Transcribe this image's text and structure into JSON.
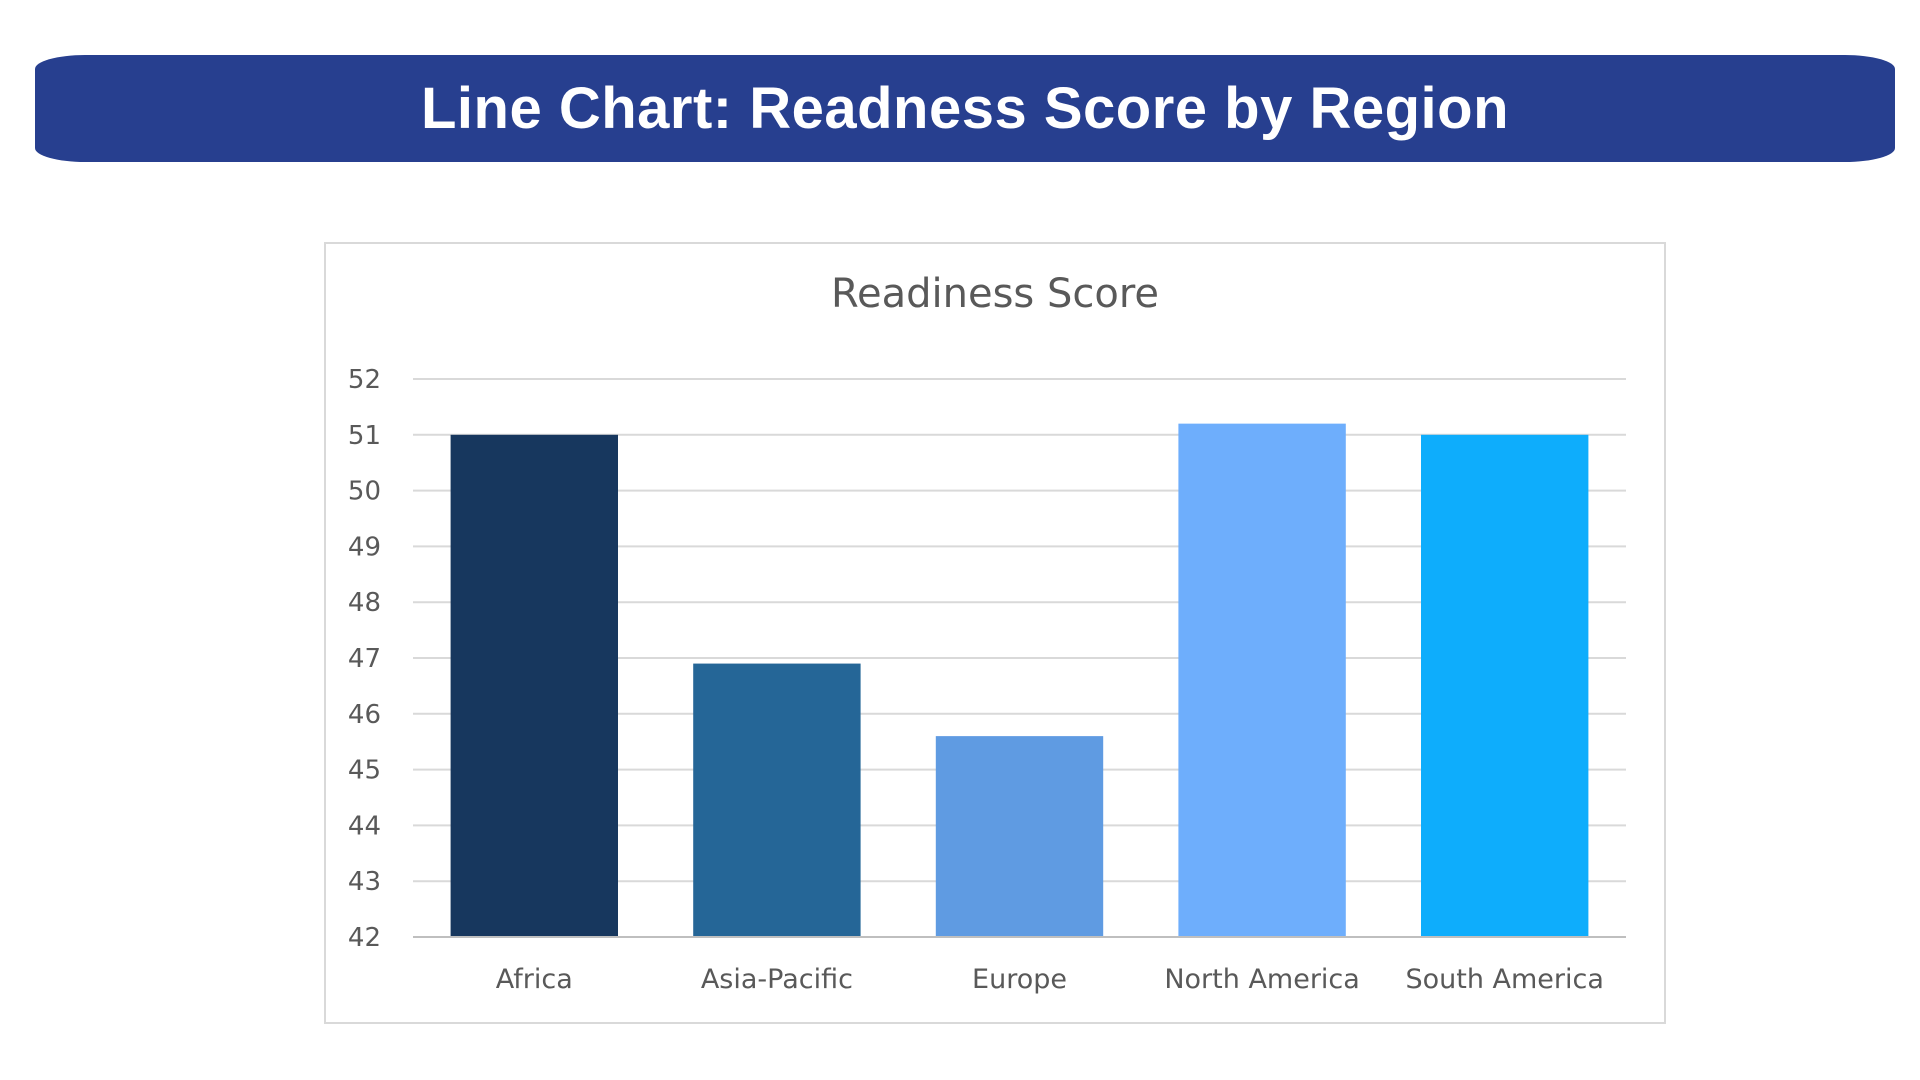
{
  "header": {
    "title": "Line Chart: Readness Score by Region",
    "background_color": "#273f8f"
  },
  "chart_data": {
    "type": "bar",
    "title": "Readiness Score",
    "xlabel": "",
    "ylabel": "",
    "categories": [
      "Africa",
      "Asia-Pacific",
      "Europe",
      "North America",
      "South America"
    ],
    "values": [
      51.0,
      46.9,
      45.6,
      51.2,
      51.0
    ],
    "colors": [
      "#17375e",
      "#256697",
      "#5f9be2",
      "#6eaefc",
      "#0eadfc"
    ],
    "ylim": [
      42,
      52
    ],
    "yticks": [
      42,
      43,
      44,
      45,
      46,
      47,
      48,
      49,
      50,
      51,
      52
    ],
    "grid": true,
    "legend": "none"
  }
}
